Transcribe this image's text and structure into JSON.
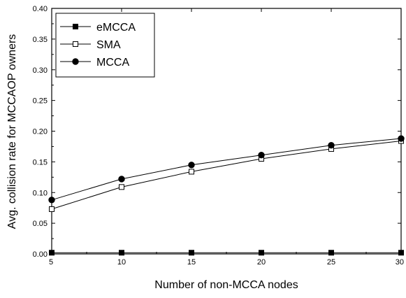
{
  "chart_data": {
    "type": "line",
    "title": "",
    "xlabel": "Number of non-MCCA nodes",
    "ylabel": "Avg. collision rate for MCCAOP owners",
    "x": [
      5,
      10,
      15,
      20,
      25,
      30
    ],
    "xlim": [
      5,
      30
    ],
    "ylim": [
      0.0,
      0.4
    ],
    "x_ticks": [
      "5",
      "10",
      "15",
      "20",
      "25",
      "30"
    ],
    "y_ticks": [
      "0.00",
      "0.05",
      "0.10",
      "0.15",
      "0.20",
      "0.25",
      "0.30",
      "0.35",
      "0.40"
    ],
    "grid": false,
    "legend_position": "top-left",
    "series": [
      {
        "name": "eMCCA",
        "marker": "filled-square",
        "color": "#000000",
        "values": [
          0.002,
          0.002,
          0.002,
          0.002,
          0.002,
          0.002
        ]
      },
      {
        "name": "SMA",
        "marker": "open-square",
        "color": "#000000",
        "values": [
          0.073,
          0.109,
          0.134,
          0.155,
          0.171,
          0.184
        ]
      },
      {
        "name": "MCCA",
        "marker": "filled-circle",
        "color": "#000000",
        "values": [
          0.088,
          0.122,
          0.145,
          0.161,
          0.177,
          0.188
        ]
      }
    ]
  }
}
